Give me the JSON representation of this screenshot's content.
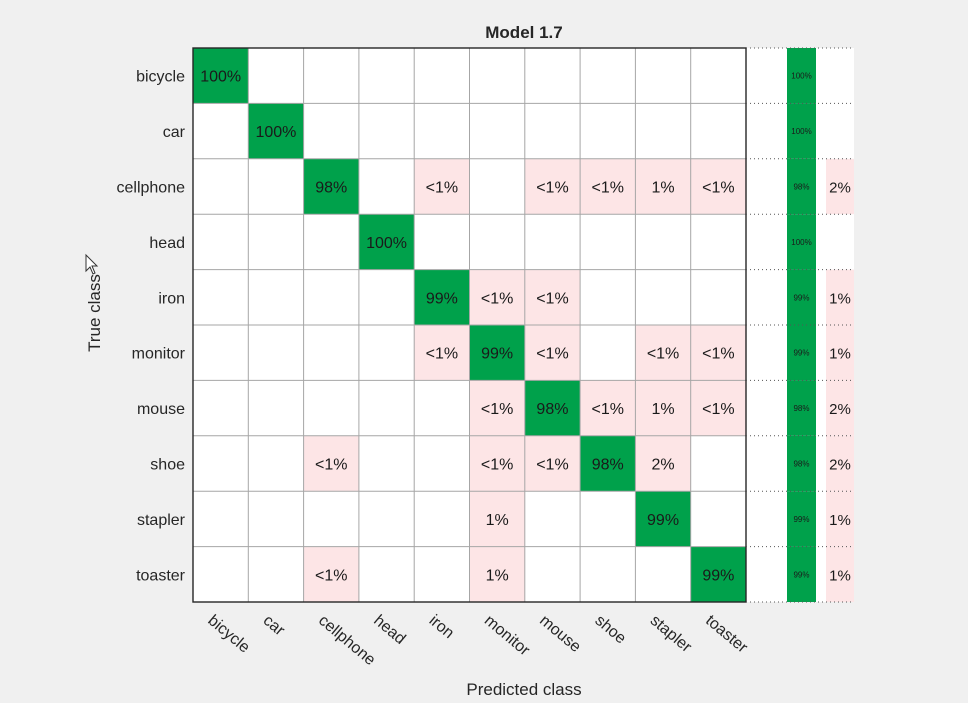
{
  "chart_data": {
    "type": "heatmap",
    "title": "Model 1.7",
    "xlabel": "Predicted class",
    "ylabel": "True class",
    "classes": [
      "bicycle",
      "car",
      "cellphone",
      "head",
      "iron",
      "monitor",
      "mouse",
      "shoe",
      "stapler",
      "toaster"
    ],
    "cells": [
      [
        "100%",
        "",
        "",
        "",
        "",
        "",
        "",
        "",
        "",
        ""
      ],
      [
        "",
        "100%",
        "",
        "",
        "",
        "",
        "",
        "",
        "",
        ""
      ],
      [
        "",
        "",
        "98%",
        "",
        "<1%",
        "",
        "<1%",
        "<1%",
        "1%",
        "<1%"
      ],
      [
        "",
        "",
        "",
        "100%",
        "",
        "",
        "",
        "",
        "",
        ""
      ],
      [
        "",
        "",
        "",
        "",
        "99%",
        "<1%",
        "<1%",
        "",
        "",
        ""
      ],
      [
        "",
        "",
        "",
        "",
        "<1%",
        "99%",
        "<1%",
        "",
        "<1%",
        "<1%"
      ],
      [
        "",
        "",
        "",
        "",
        "",
        "<1%",
        "98%",
        "<1%",
        "1%",
        "<1%"
      ],
      [
        "",
        "",
        "<1%",
        "",
        "",
        "<1%",
        "<1%",
        "98%",
        "2%",
        ""
      ],
      [
        "",
        "",
        "",
        "",
        "",
        "1%",
        "",
        "",
        "99%",
        ""
      ],
      [
        "",
        "",
        "<1%",
        "",
        "",
        "1%",
        "",
        "",
        "",
        "99%"
      ]
    ],
    "row_summary": {
      "tpr": [
        "100%",
        "100%",
        "98%",
        "100%",
        "99%",
        "99%",
        "98%",
        "98%",
        "99%",
        "99%"
      ],
      "fnr": [
        "",
        "",
        "2%",
        "",
        "1%",
        "1%",
        "2%",
        "2%",
        "1%",
        "1%"
      ]
    },
    "colors": {
      "diagonal": "#00a14b",
      "off_diagonal": "#fde5e6",
      "background": "#f0f0f0",
      "plot_bg": "#ffffff"
    }
  }
}
